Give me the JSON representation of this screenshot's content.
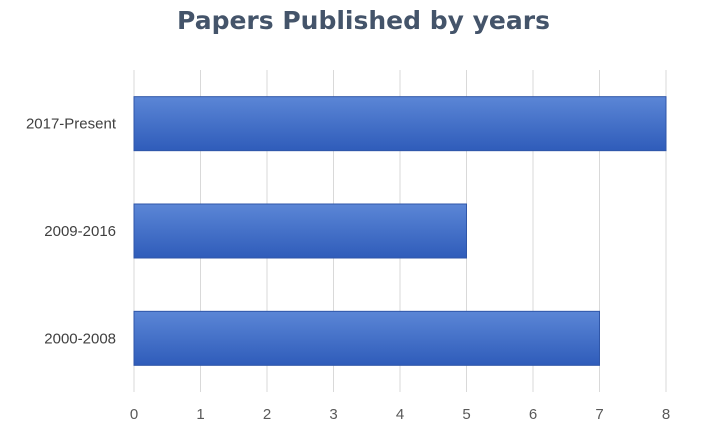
{
  "chart_data": {
    "type": "bar",
    "orientation": "horizontal",
    "title": "Papers Published by years",
    "categories": [
      "2017-Present",
      "2009-2016",
      "2000-2008"
    ],
    "values": [
      8,
      5,
      7
    ],
    "xlabel": "",
    "ylabel": "",
    "xlim": [
      0,
      8
    ],
    "xticks": [
      "0",
      "1",
      "2",
      "3",
      "4",
      "5",
      "6",
      "7",
      "8"
    ],
    "grid": "vertical",
    "legend": "none",
    "bar_color": "#3F6BC6",
    "bar_color_light": "#5B86D6",
    "grid_color": "#D9D9D9"
  }
}
